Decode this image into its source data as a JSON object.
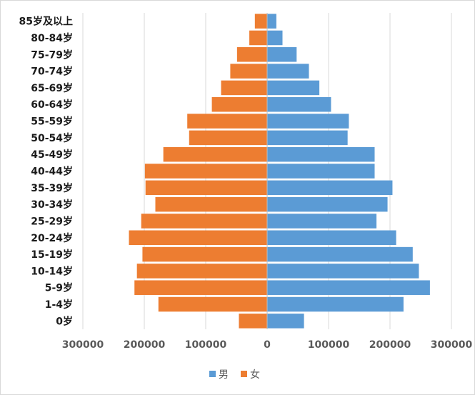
{
  "chart_data": {
    "type": "bar",
    "orientation": "horizontal",
    "layout": "population-pyramid",
    "categories": [
      "0岁",
      "1-4岁",
      "5-9岁",
      "10-14岁",
      "15-19岁",
      "20-24岁",
      "25-29岁",
      "30-34岁",
      "35-39岁",
      "40-44岁",
      "45-49岁",
      "50-54岁",
      "55-59岁",
      "60-64岁",
      "65-69岁",
      "70-74岁",
      "75-79岁",
      "80-84岁",
      "85岁及以上"
    ],
    "series": [
      {
        "name": "男",
        "color": "#5b9bd5",
        "side": "right",
        "values": [
          60000,
          222000,
          265000,
          247000,
          237000,
          210000,
          178000,
          196000,
          204000,
          175000,
          175000,
          131000,
          133000,
          104000,
          85000,
          68000,
          48000,
          25000,
          15000
        ]
      },
      {
        "name": "女",
        "color": "#ed7d31",
        "side": "left",
        "values": [
          46000,
          177000,
          216000,
          212000,
          203000,
          225000,
          205000,
          182000,
          198000,
          199000,
          169000,
          127000,
          130000,
          90000,
          75000,
          60000,
          49000,
          29000,
          20000
        ]
      }
    ],
    "x_ticks": [
      "300000",
      "200000",
      "100000",
      "0",
      "100000",
      "200000",
      "300000"
    ],
    "xlim": [
      -300000,
      300000
    ],
    "grid": true,
    "legend": "bottom-center"
  }
}
